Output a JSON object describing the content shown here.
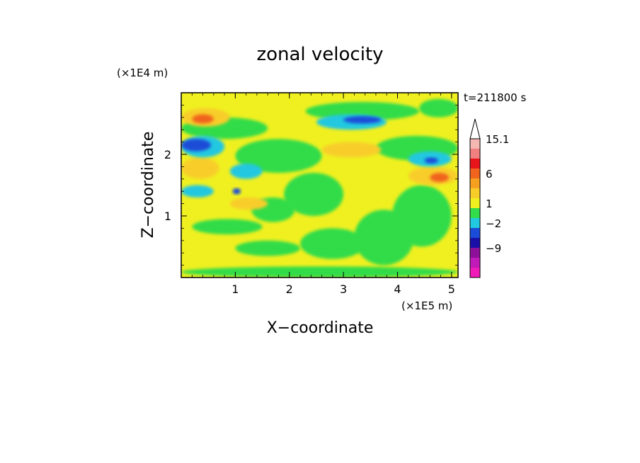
{
  "chart_data": {
    "type": "heatmap",
    "title": "zonal velocity",
    "xlabel": "X−coordinate",
    "ylabel": "Z−coordinate",
    "x_unit": "(×1E5 m)",
    "y_unit": "(×1E4 m)",
    "annotation": "t=211800 s",
    "xlim": [
      0,
      5.12
    ],
    "ylim": [
      0,
      3.0
    ],
    "x_ticks": [
      {
        "value": 1,
        "label": "1"
      },
      {
        "value": 2,
        "label": "2"
      },
      {
        "value": 3,
        "label": "3"
      },
      {
        "value": 4,
        "label": "4"
      },
      {
        "value": 5,
        "label": "5"
      }
    ],
    "y_ticks": [
      {
        "value": 1,
        "label": "1"
      },
      {
        "value": 2,
        "label": "2"
      }
    ],
    "colorbar": {
      "label_values": [
        "15.1",
        "6",
        "1",
        "−2",
        "−9"
      ],
      "colors_top_to_bottom": [
        "#f5b7b1",
        "#f08080",
        "#e8141c",
        "#f0641e",
        "#f5a020",
        "#f8cd2a",
        "#f0f020",
        "#32dc4a",
        "#22c8e0",
        "#1a4cd8",
        "#1a10a8",
        "#8c1098",
        "#c01ab8",
        "#f01ab8"
      ]
    },
    "background_color": "#f0f020",
    "regions": [
      {
        "value": "1",
        "color": "#32dc4a",
        "x": [
          0,
          5.12
        ],
        "y": [
          0,
          0.18
        ]
      },
      {
        "value": "1",
        "color": "#32dc4a",
        "x": [
          0.2,
          1.5
        ],
        "y": [
          0.7,
          0.95
        ]
      },
      {
        "value": "1",
        "color": "#32dc4a",
        "x": [
          1.0,
          2.2
        ],
        "y": [
          0.35,
          0.6
        ]
      },
      {
        "value": "1",
        "color": "#32dc4a",
        "x": [
          1.3,
          2.1
        ],
        "y": [
          0.9,
          1.3
        ]
      },
      {
        "value": "1",
        "color": "#32dc4a",
        "x": [
          1.9,
          3.0
        ],
        "y": [
          1.0,
          1.7
        ]
      },
      {
        "value": "1",
        "color": "#32dc4a",
        "x": [
          3.2,
          4.3
        ],
        "y": [
          0.2,
          1.1
        ]
      },
      {
        "value": "1",
        "color": "#32dc4a",
        "x": [
          3.9,
          5.0
        ],
        "y": [
          0.5,
          1.5
        ]
      },
      {
        "value": "1",
        "color": "#32dc4a",
        "x": [
          0.0,
          1.6
        ],
        "y": [
          2.25,
          2.6
        ]
      },
      {
        "value": "1",
        "color": "#32dc4a",
        "x": [
          1.0,
          2.6
        ],
        "y": [
          1.7,
          2.25
        ]
      },
      {
        "value": "1",
        "color": "#32dc4a",
        "x": [
          2.3,
          4.4
        ],
        "y": [
          2.55,
          2.85
        ]
      },
      {
        "value": "1",
        "color": "#32dc4a",
        "x": [
          3.6,
          5.12
        ],
        "y": [
          1.9,
          2.3
        ]
      },
      {
        "value": "1",
        "color": "#32dc4a",
        "x": [
          2.2,
          3.4
        ],
        "y": [
          0.3,
          0.8
        ]
      },
      {
        "value": "1",
        "color": "#32dc4a",
        "x": [
          4.4,
          5.12
        ],
        "y": [
          2.6,
          2.9
        ]
      },
      {
        "value": "4",
        "color": "#f8cd2a",
        "x": [
          0.0,
          0.9
        ],
        "y": [
          2.45,
          2.75
        ]
      },
      {
        "value": "4",
        "color": "#f8cd2a",
        "x": [
          2.6,
          3.7
        ],
        "y": [
          1.95,
          2.2
        ]
      },
      {
        "value": "4",
        "color": "#f8cd2a",
        "x": [
          4.2,
          5.12
        ],
        "y": [
          1.5,
          1.8
        ]
      },
      {
        "value": "4",
        "color": "#f8cd2a",
        "x": [
          0.0,
          0.7
        ],
        "y": [
          1.6,
          1.95
        ]
      },
      {
        "value": "4",
        "color": "#f8cd2a",
        "x": [
          0.9,
          1.6
        ],
        "y": [
          1.1,
          1.3
        ]
      },
      {
        "value": "6",
        "color": "#f0641e",
        "x": [
          0.2,
          0.6
        ],
        "y": [
          2.5,
          2.65
        ]
      },
      {
        "value": "6",
        "color": "#f0641e",
        "x": [
          4.6,
          4.95
        ],
        "y": [
          1.55,
          1.7
        ]
      },
      {
        "value": "-2",
        "color": "#22c8e0",
        "x": [
          0.0,
          0.8
        ],
        "y": [
          1.95,
          2.3
        ]
      },
      {
        "value": "-2",
        "color": "#22c8e0",
        "x": [
          2.5,
          3.8
        ],
        "y": [
          2.4,
          2.65
        ]
      },
      {
        "value": "-2",
        "color": "#22c8e0",
        "x": [
          4.2,
          5.0
        ],
        "y": [
          1.8,
          2.05
        ]
      },
      {
        "value": "-2",
        "color": "#22c8e0",
        "x": [
          0.9,
          1.5
        ],
        "y": [
          1.6,
          1.85
        ]
      },
      {
        "value": "-2",
        "color": "#22c8e0",
        "x": [
          0.0,
          0.6
        ],
        "y": [
          1.3,
          1.5
        ]
      },
      {
        "value": "-6",
        "color": "#1a4cd8",
        "x": [
          0.0,
          0.55
        ],
        "y": [
          2.05,
          2.25
        ]
      },
      {
        "value": "-6",
        "color": "#1a4cd8",
        "x": [
          3.0,
          3.7
        ],
        "y": [
          2.5,
          2.62
        ]
      },
      {
        "value": "-6",
        "color": "#1a4cd8",
        "x": [
          4.5,
          4.75
        ],
        "y": [
          1.85,
          1.95
        ]
      },
      {
        "value": "-6",
        "color": "#1a4cd8",
        "x": [
          0.95,
          1.1
        ],
        "y": [
          1.35,
          1.45
        ]
      }
    ]
  }
}
